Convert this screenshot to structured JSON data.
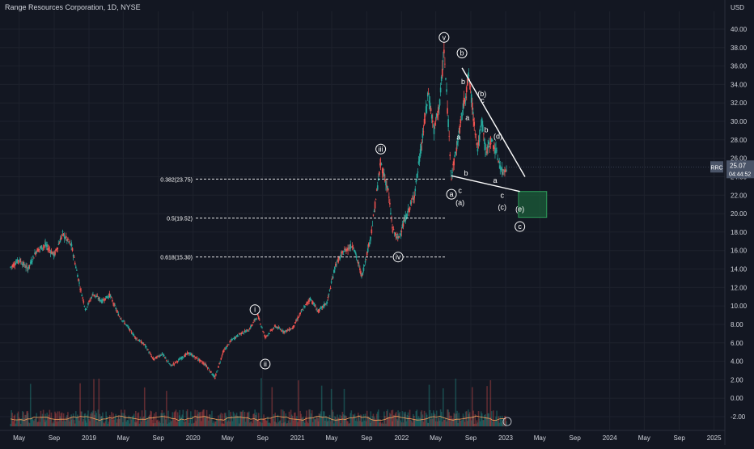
{
  "header": {
    "title": "Range Resources Corporation, 1D, NYSE",
    "currency": "USD"
  },
  "colors": {
    "background": "#131722",
    "grid": "#1e222d",
    "text": "#d1d4dc",
    "up": "#26a69a",
    "down": "#ef5350",
    "white": "#ffffff",
    "target_zone_fill": "#1b5e3a",
    "target_zone_stroke": "#2e9e5b",
    "price_label_bg": "#4a5468"
  },
  "chart_data": {
    "type": "candlestick",
    "title": "Range Resources Corporation, 1D, NYSE",
    "ylabel": "USD",
    "ylim": [
      -3,
      41
    ],
    "y_ticks": [
      "40.00",
      "38.00",
      "36.00",
      "34.00",
      "32.00",
      "30.00",
      "28.00",
      "26.00",
      "24.00",
      "22.00",
      "20.00",
      "18.00",
      "16.00",
      "14.00",
      "12.00",
      "10.00",
      "8.00",
      "6.00",
      "4.00",
      "2.00",
      "0.00",
      "-2.00"
    ],
    "x_ticks": [
      "May",
      "Sep",
      "2019",
      "May",
      "Sep",
      "2020",
      "May",
      "Sep",
      "2021",
      "May",
      "Sep",
      "2022",
      "May",
      "Sep",
      "2023",
      "May",
      "Sep",
      "2024",
      "May",
      "Sep",
      "2025"
    ],
    "last_price": {
      "symbol": "RRC",
      "value": "25.07",
      "countdown": "04:44:52"
    },
    "price_path": [
      [
        "2018-04-01",
        14.2
      ],
      [
        "2018-05-01",
        15.0
      ],
      [
        "2018-06-01",
        14.0
      ],
      [
        "2018-07-01",
        16.0
      ],
      [
        "2018-08-01",
        16.6
      ],
      [
        "2018-09-01",
        15.5
      ],
      [
        "2018-10-01",
        17.8
      ],
      [
        "2018-11-01",
        16.5
      ],
      [
        "2018-12-01",
        12.0
      ],
      [
        "2018-12-20",
        9.6
      ],
      [
        "2019-01-15",
        11.3
      ],
      [
        "2019-02-15",
        10.5
      ],
      [
        "2019-03-15",
        11.2
      ],
      [
        "2019-04-15",
        9.0
      ],
      [
        "2019-05-15",
        7.8
      ],
      [
        "2019-06-15",
        6.5
      ],
      [
        "2019-07-15",
        5.8
      ],
      [
        "2019-08-15",
        4.2
      ],
      [
        "2019-09-15",
        4.8
      ],
      [
        "2019-10-15",
        3.5
      ],
      [
        "2019-11-15",
        4.2
      ],
      [
        "2019-12-15",
        4.9
      ],
      [
        "2020-01-15",
        4.3
      ],
      [
        "2020-02-15",
        3.6
      ],
      [
        "2020-03-18",
        2.2
      ],
      [
        "2020-04-15",
        5.0
      ],
      [
        "2020-05-15",
        6.3
      ],
      [
        "2020-06-15",
        7.0
      ],
      [
        "2020-07-15",
        7.4
      ],
      [
        "2020-08-15",
        9.0
      ],
      [
        "2020-09-10",
        6.6
      ],
      [
        "2020-10-15",
        7.8
      ],
      [
        "2020-11-15",
        7.2
      ],
      [
        "2020-12-15",
        7.6
      ],
      [
        "2021-01-15",
        9.4
      ],
      [
        "2021-02-15",
        10.8
      ],
      [
        "2021-03-15",
        9.4
      ],
      [
        "2021-04-15",
        10.4
      ],
      [
        "2021-05-15",
        14.5
      ],
      [
        "2021-06-15",
        16.0
      ],
      [
        "2021-07-15",
        16.6
      ],
      [
        "2021-08-15",
        13.2
      ],
      [
        "2021-09-15",
        17.5
      ],
      [
        "2021-10-20",
        25.5
      ],
      [
        "2021-11-15",
        22.5
      ],
      [
        "2021-12-01",
        18.2
      ],
      [
        "2021-12-20",
        17.3
      ],
      [
        "2022-01-15",
        19.5
      ],
      [
        "2022-02-15",
        22.0
      ],
      [
        "2022-03-10",
        27.0
      ],
      [
        "2022-04-05",
        33.0
      ],
      [
        "2022-04-25",
        29.0
      ],
      [
        "2022-05-15",
        32.0
      ],
      [
        "2022-05-30",
        37.7
      ],
      [
        "2022-06-25",
        24.0
      ],
      [
        "2022-07-15",
        27.5
      ],
      [
        "2022-08-05",
        31.5
      ],
      [
        "2022-08-25",
        35.0
      ],
      [
        "2022-09-10",
        30.5
      ],
      [
        "2022-09-25",
        27.0
      ],
      [
        "2022-10-10",
        30.0
      ],
      [
        "2022-10-25",
        26.5
      ],
      [
        "2022-11-10",
        28.0
      ],
      [
        "2022-11-25",
        27.0
      ],
      [
        "2022-12-20",
        24.5
      ],
      [
        "2023-01-05",
        25.07
      ]
    ],
    "fib_levels": [
      {
        "label": "0.382(23.75)",
        "value": 23.75
      },
      {
        "label": "0.5(19.52)",
        "value": 19.52
      },
      {
        "label": "0.618(15.30)",
        "value": 15.3
      }
    ],
    "trendlines": [
      {
        "from": [
          "2022-08-01",
          35.8
        ],
        "to": [
          "2023-03-10",
          24.0
        ]
      },
      {
        "from": [
          "2022-06-25",
          24.1
        ],
        "to": [
          "2023-02-20",
          22.4
        ]
      }
    ],
    "target_zone": {
      "x0": "2023-02-15",
      "x1": "2023-05-25",
      "y0": 19.6,
      "y1": 22.4
    },
    "annotations": [
      {
        "text": "i",
        "x": "2020-08-05",
        "y": 9.6,
        "circle": true
      },
      {
        "text": "ii",
        "x": "2020-09-10",
        "y": 3.7,
        "circle": true
      },
      {
        "text": "iii",
        "x": "2021-10-20",
        "y": 27.0,
        "circle": true
      },
      {
        "text": "iv",
        "x": "2021-12-20",
        "y": 15.3,
        "circle": true
      },
      {
        "text": "v",
        "x": "2022-05-30",
        "y": 39.1,
        "circle": true
      },
      {
        "text": "a",
        "x": "2022-06-25",
        "y": 22.1,
        "circle": true
      },
      {
        "text": "b",
        "x": "2022-08-01",
        "y": 37.4,
        "circle": true
      },
      {
        "text": "c",
        "x": "2023-02-20",
        "y": 18.6,
        "circle": true
      },
      {
        "text": "b",
        "x": "2022-08-05",
        "y": 34.3,
        "circle": false
      },
      {
        "text": "(b)",
        "x": "2022-10-10",
        "y": 33.0,
        "circle": false
      },
      {
        "text": "c",
        "x": "2022-10-12",
        "y": 32.3,
        "circle": false
      },
      {
        "text": "a",
        "x": "2022-08-20",
        "y": 30.4,
        "circle": false
      },
      {
        "text": "b",
        "x": "2022-10-25",
        "y": 29.1,
        "circle": false
      },
      {
        "text": "(d)",
        "x": "2022-12-05",
        "y": 28.4,
        "circle": false
      },
      {
        "text": "a",
        "x": "2022-07-20",
        "y": 28.3,
        "circle": false
      },
      {
        "text": "b",
        "x": "2022-08-15",
        "y": 24.4,
        "circle": false
      },
      {
        "text": "a",
        "x": "2022-11-25",
        "y": 23.6,
        "circle": false
      },
      {
        "text": "c",
        "x": "2022-07-25",
        "y": 22.5,
        "circle": false
      },
      {
        "text": "c",
        "x": "2022-12-20",
        "y": 22.0,
        "circle": false
      },
      {
        "text": "(a)",
        "x": "2022-07-25",
        "y": 21.2,
        "circle": false
      },
      {
        "text": "(c)",
        "x": "2022-12-20",
        "y": 20.7,
        "circle": false
      },
      {
        "text": "(e)",
        "x": "2023-02-20",
        "y": 20.5,
        "circle": false
      }
    ],
    "legend": "none",
    "grid": true
  }
}
